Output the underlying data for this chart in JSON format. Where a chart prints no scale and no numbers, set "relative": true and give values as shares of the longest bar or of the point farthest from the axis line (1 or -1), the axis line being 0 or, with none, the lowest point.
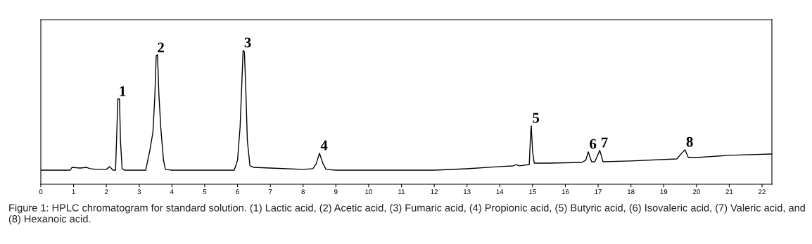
{
  "chart_data": {
    "type": "line",
    "relative": true,
    "xlim": [
      0,
      22.3
    ],
    "xticks": [
      0,
      1,
      2,
      3,
      4,
      5,
      6,
      7,
      8,
      9,
      10,
      11,
      12,
      13,
      14,
      15,
      16,
      17,
      18,
      19,
      20,
      21,
      22
    ],
    "series": [
      {
        "color": "#000000",
        "x": [
          0,
          0.9,
          0.95,
          1.2,
          1.4,
          1.5,
          1.71,
          2.0,
          2.1,
          2.2,
          2.28,
          2.32,
          2.35,
          2.4,
          2.43,
          2.48,
          2.55,
          3.2,
          3.33,
          3.42,
          3.48,
          3.52,
          3.56,
          3.6,
          3.66,
          3.74,
          3.8,
          4.0,
          5.9,
          6.0,
          6.08,
          6.13,
          6.17,
          6.21,
          6.25,
          6.3,
          6.38,
          6.5,
          7.0,
          8.0,
          8.3,
          8.4,
          8.5,
          8.6,
          8.7,
          9,
          12,
          13,
          14,
          14.4,
          14.5,
          14.6,
          14.9,
          14.93,
          14.96,
          15.0,
          15.05,
          15.5,
          16.5,
          16.62,
          16.7,
          16.8,
          16.9,
          17.05,
          17.15,
          18,
          19.4,
          19.55,
          19.65,
          19.75,
          20,
          21,
          22.3
        ],
        "values": [
          0.105,
          0.105,
          0.126,
          0.121,
          0.126,
          0.116,
          0.111,
          0.111,
          0.132,
          0.105,
          0.105,
          0.405,
          0.637,
          0.637,
          0.326,
          0.116,
          0.105,
          0.105,
          0.258,
          0.389,
          0.668,
          0.963,
          0.968,
          0.679,
          0.421,
          0.184,
          0.111,
          0.105,
          0.105,
          0.179,
          0.432,
          0.742,
          1.0,
          0.989,
          0.732,
          0.326,
          0.137,
          0.126,
          0.121,
          0.111,
          0.116,
          0.153,
          0.232,
          0.158,
          0.111,
          0.105,
          0.105,
          0.116,
          0.132,
          0.137,
          0.147,
          0.137,
          0.147,
          0.326,
          0.437,
          0.247,
          0.158,
          0.158,
          0.163,
          0.179,
          0.242,
          0.168,
          0.168,
          0.253,
          0.168,
          0.174,
          0.189,
          0.232,
          0.258,
          0.2,
          0.2,
          0.216,
          0.226
        ]
      }
    ],
    "annotations": [
      {
        "text": "1",
        "x": 2.35,
        "y": 0.637
      },
      {
        "text": "2",
        "x": 3.52,
        "y": 0.963
      },
      {
        "text": "3",
        "x": 6.17,
        "y": 1.0
      },
      {
        "text": "4",
        "x": 8.5,
        "y": 0.232
      },
      {
        "text": "5",
        "x": 14.96,
        "y": 0.437
      },
      {
        "text": "6",
        "x": 16.7,
        "y": 0.242
      },
      {
        "text": "7",
        "x": 17.05,
        "y": 0.253
      },
      {
        "text": "8",
        "x": 19.65,
        "y": 0.258
      },
      "Figure 1: HPLC chromatogram for standard solution. (1) Lactic acid, (2) Acetic acid, (3) Fumaric acid, (4) Propionic acid, (5) Butyric acid, (6) Isovaleric acid, (7) Valeric acid, and (8) Hexanoic acid."
    ]
  }
}
